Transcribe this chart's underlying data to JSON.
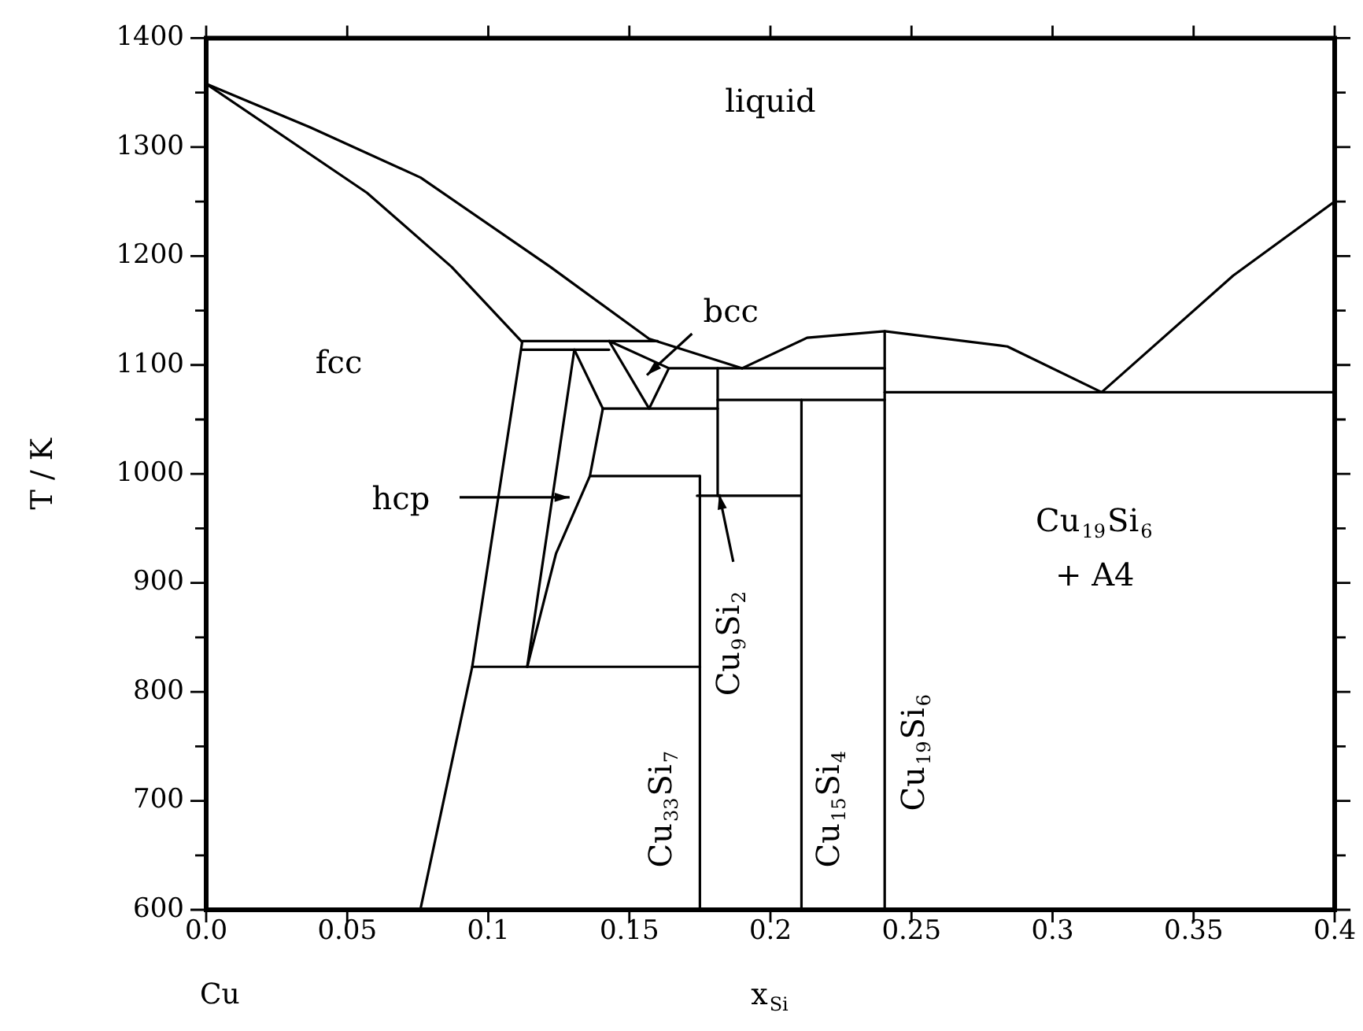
{
  "chart_data": {
    "type": "line",
    "xlabel": "x$_{Si}$",
    "ylabel": "T / K",
    "xlim": [
      0,
      0.4
    ],
    "ylim": [
      600,
      1400
    ],
    "xticks": [
      {
        "value": 0,
        "label": "0.0"
      },
      0.05,
      0.1,
      0.15,
      0.2,
      0.25,
      0.3,
      0.35,
      0.4
    ],
    "yticks": [
      600,
      {
        "value": 650,
        "label": null
      },
      700,
      {
        "value": 750,
        "label": null
      },
      800,
      {
        "value": 850,
        "label": null
      },
      900,
      {
        "value": 950,
        "label": null
      },
      1000,
      {
        "value": 1050,
        "label": null
      },
      1100,
      {
        "value": 1150,
        "label": null
      },
      1200,
      {
        "value": 1250,
        "label": null
      },
      1300,
      {
        "value": 1350,
        "label": null
      },
      1400
    ],
    "grid": false,
    "legend": false,
    "marker": "none",
    "line_style": "solid",
    "series": [
      {
        "color": "#000000",
        "x": [
          0,
          0.037,
          0.076,
          0.122,
          0.157,
          0.19
        ],
        "values": [
          1358,
          1318,
          1272,
          1190,
          1124,
          1097
        ]
      },
      {
        "color": "#000000",
        "x": [
          0,
          0.057,
          0.087,
          0.112
        ],
        "values": [
          1358,
          1258,
          1190,
          1121
        ]
      },
      {
        "color": "#000000",
        "x": [
          0.112,
          0.0943,
          0.0759
        ],
        "values": [
          1121,
          823,
          600
        ]
      },
      {
        "color": "#000000",
        "x": [
          0.112,
          0.16
        ],
        "values": [
          1122,
          1122
        ]
      },
      {
        "color": "#000000",
        "x": [
          0.112,
          0.1428
        ],
        "values": [
          1114,
          1114
        ]
      },
      {
        "color": "#000000",
        "x": [
          0.1305,
          0.1138
        ],
        "values": [
          1114,
          823
        ]
      },
      {
        "color": "#000000",
        "x": [
          0.1305,
          0.1406
        ],
        "values": [
          1114,
          1060
        ]
      },
      {
        "color": "#000000",
        "x": [
          0.1406,
          0.136,
          0.124,
          0.1138
        ],
        "values": [
          1060,
          998,
          927,
          823
        ]
      },
      {
        "color": "#000000",
        "x": [
          0.1406,
          0.1813
        ],
        "values": [
          1060,
          1060
        ]
      },
      {
        "color": "#000000",
        "x": [
          0.136,
          0.175
        ],
        "values": [
          998,
          998
        ]
      },
      {
        "color": "#000000",
        "x": [
          0.175,
          0.175
        ],
        "values": [
          998,
          600
        ]
      },
      {
        "color": "#000000",
        "x": [
          0.0943,
          0.175
        ],
        "values": [
          823,
          823
        ]
      },
      {
        "color": "#000000",
        "x": [
          0.164,
          0.157,
          0.1428,
          0.164,
          0.2405
        ],
        "values": [
          1097,
          1060,
          1122,
          1097,
          1097
        ]
      },
      {
        "color": "#000000",
        "x": [
          0.1813,
          0.1813
        ],
        "values": [
          1097,
          980
        ]
      },
      {
        "color": "#000000",
        "x": [
          0.174,
          0.211
        ],
        "values": [
          980,
          980
        ]
      },
      {
        "color": "#000000",
        "x": [
          0.1813,
          0.2405
        ],
        "values": [
          1068,
          1068
        ]
      },
      {
        "color": "#000000",
        "x": [
          0.211,
          0.211
        ],
        "values": [
          1068,
          600
        ]
      },
      {
        "color": "#000000",
        "x": [
          0.2405,
          0.2405
        ],
        "values": [
          1131,
          600
        ]
      },
      {
        "color": "#000000",
        "x": [
          0.19,
          0.213,
          0.2405,
          0.284,
          0.3174,
          0.364,
          0.4
        ],
        "values": [
          1097,
          1125,
          1131,
          1117,
          1075,
          1182,
          1250
        ]
      },
      {
        "color": "#000000",
        "x": [
          0.2405,
          0.4
        ],
        "values": [
          1075,
          1075
        ]
      }
    ],
    "annotations": [
      "liquid",
      "fcc",
      "bcc",
      "hcp",
      "Cu$_{9}$Si$_{2}$",
      "Cu$_{33}$Si$_{7}$",
      "Cu$_{15}$Si$_{4}$",
      "Cu$_{19}$Si$_{6}$",
      "Cu$_{19}$Si$_{6}$",
      "+ A4",
      "Cu"
    ]
  }
}
